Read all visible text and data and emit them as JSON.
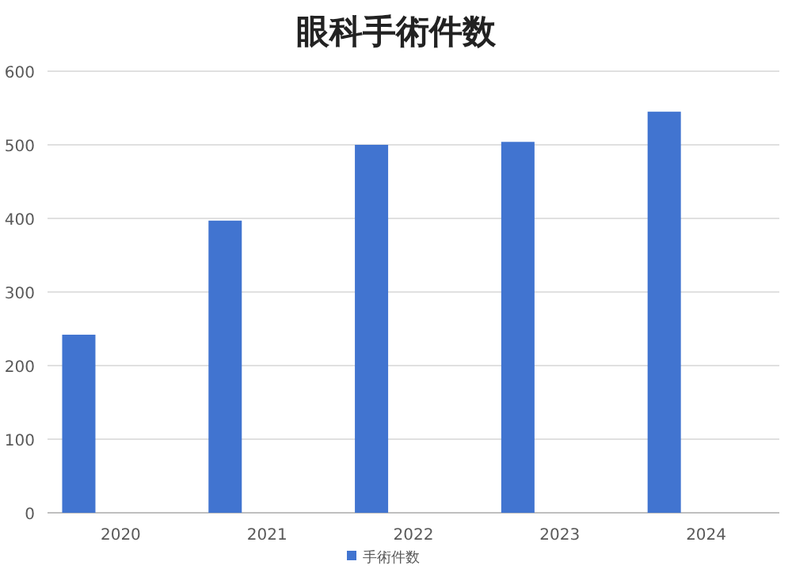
{
  "chart_data": {
    "type": "bar",
    "title": "眼科手術件数",
    "categories": [
      "2020",
      "2021",
      "2022",
      "2023",
      "2024"
    ],
    "series": [
      {
        "name": "手術件数",
        "color": "#4174d0",
        "values": [
          242,
          397,
          500,
          504,
          545
        ]
      }
    ],
    "ylim": [
      0,
      600
    ],
    "yticks": [
      0,
      100,
      200,
      300,
      400,
      500,
      600
    ],
    "grid": "y",
    "legend": "bottom"
  }
}
